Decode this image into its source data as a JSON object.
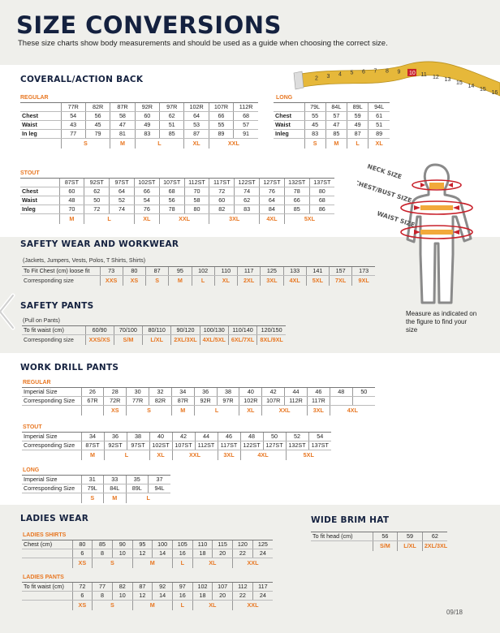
{
  "header": {
    "title": "SIZE CONVERSIONS",
    "subtitle": "These size charts show body measurements and should be used as a guide when choosing the correct size.",
    "tape_numbers": [
      "2",
      "3",
      "4",
      "5",
      "6",
      "7",
      "8",
      "9",
      "10",
      "11",
      "12",
      "13",
      "15",
      "14",
      "15",
      "16"
    ]
  },
  "colors": {
    "navy": "#14213f",
    "orange": "#e87722",
    "band": "#efefeb",
    "arrow": "#c8202a",
    "tape": "#e6b83a"
  },
  "coverall": {
    "title": "COVERALL/ACTION BACK",
    "regular": {
      "label": "REGULAR",
      "header": [
        "",
        "77R",
        "82R",
        "87R",
        "92R",
        "97R",
        "102R",
        "107R",
        "112R"
      ],
      "rows": [
        [
          "Chest",
          "54",
          "56",
          "58",
          "60",
          "62",
          "64",
          "66",
          "68"
        ],
        [
          "Waist",
          "43",
          "45",
          "47",
          "49",
          "51",
          "53",
          "55",
          "57"
        ],
        [
          "In leg",
          "77",
          "79",
          "81",
          "83",
          "85",
          "87",
          "89",
          "91"
        ]
      ],
      "sizes": {
        "label": "",
        "items": [
          {
            "label": "S",
            "span": 2
          },
          {
            "label": "M",
            "span": 1
          },
          {
            "label": "L",
            "span": 2
          },
          {
            "label": "XL",
            "span": 1
          },
          {
            "label": "XXL",
            "span": 2
          }
        ]
      }
    },
    "long": {
      "label": "LONG",
      "header": [
        "",
        "79L",
        "84L",
        "89L",
        "94L"
      ],
      "rows": [
        [
          "Chest",
          "55",
          "57",
          "59",
          "61"
        ],
        [
          "Waist",
          "45",
          "47",
          "49",
          "51"
        ],
        [
          "Inleg",
          "83",
          "85",
          "87",
          "89"
        ]
      ],
      "sizes": {
        "label": "",
        "items": [
          {
            "label": "S",
            "span": 1
          },
          {
            "label": "M",
            "span": 1
          },
          {
            "label": "L",
            "span": 1
          },
          {
            "label": "XL",
            "span": 1
          }
        ]
      }
    },
    "stout": {
      "label": "STOUT",
      "header": [
        "",
        "87ST",
        "92ST",
        "97ST",
        "102ST",
        "107ST",
        "112ST",
        "117ST",
        "122ST",
        "127ST",
        "132ST",
        "137ST"
      ],
      "rows": [
        [
          "Chest",
          "60",
          "62",
          "64",
          "66",
          "68",
          "70",
          "72",
          "74",
          "76",
          "78",
          "80"
        ],
        [
          "Waist",
          "48",
          "50",
          "52",
          "54",
          "56",
          "58",
          "60",
          "62",
          "64",
          "66",
          "68"
        ],
        [
          "Inleg",
          "70",
          "72",
          "74",
          "76",
          "78",
          "80",
          "82",
          "83",
          "84",
          "85",
          "86"
        ]
      ],
      "sizes": {
        "label": "",
        "items": [
          {
            "label": "M",
            "span": 1
          },
          {
            "label": "L",
            "span": 2
          },
          {
            "label": "XL",
            "span": 1
          },
          {
            "label": "XXL",
            "span": 2
          },
          {
            "label": "3XL",
            "span": 2
          },
          {
            "label": "4XL",
            "span": 1
          },
          {
            "label": "5XL",
            "span": 2
          }
        ]
      }
    }
  },
  "figure": {
    "neck_label": "NECK SIZE",
    "chest_label": "CHEST/BUST SIZE",
    "waist_label": "WAIST SIZE",
    "caption": "Measure as indicated on the figure to find your size"
  },
  "safety_wear": {
    "title": "SAFETY WEAR AND WORKWEAR",
    "table": {
      "note": "(Jackets, Jumpers, Vests, Polos, T Shirts, Shirts)",
      "rows": [
        [
          "To Fit Chest (cm) loose fit",
          "73",
          "80",
          "87",
          "95",
          "102",
          "110",
          "117",
          "125",
          "133",
          "141",
          "157",
          "173"
        ]
      ],
      "sizes": {
        "label": "Corresponding size",
        "items": [
          {
            "label": "XXS",
            "span": 1
          },
          {
            "label": "XS",
            "span": 1
          },
          {
            "label": "S",
            "span": 1
          },
          {
            "label": "M",
            "span": 1
          },
          {
            "label": "L",
            "span": 1
          },
          {
            "label": "XL",
            "span": 1
          },
          {
            "label": "2XL",
            "span": 1
          },
          {
            "label": "3XL",
            "span": 1
          },
          {
            "label": "4XL",
            "span": 1
          },
          {
            "label": "5XL",
            "span": 1
          },
          {
            "label": "7XL",
            "span": 1
          },
          {
            "label": "9XL",
            "span": 1
          }
        ]
      }
    }
  },
  "safety_pants": {
    "title": "SAFETY PANTS",
    "table": {
      "note": "(Pull on Pants)",
      "rows": [
        [
          "To fit waist (cm)",
          "60/90",
          "70/100",
          "80/110",
          "90/120",
          "100/130",
          "110/140",
          "120/150"
        ]
      ],
      "sizes": {
        "label": "Corresponding size",
        "items": [
          {
            "label": "XXS/XS",
            "span": 1
          },
          {
            "label": "S/M",
            "span": 1
          },
          {
            "label": "L/XL",
            "span": 1
          },
          {
            "label": "2XL/3XL",
            "span": 1
          },
          {
            "label": "4XL/5XL",
            "span": 1
          },
          {
            "label": "6XL/7XL",
            "span": 1
          },
          {
            "label": "8XL/9XL",
            "span": 1
          }
        ]
      }
    }
  },
  "work_drill": {
    "title": "WORK DRILL PANTS",
    "regular": {
      "label": "REGULAR",
      "rows": [
        [
          "Imperial Size",
          "26",
          "28",
          "30",
          "32",
          "34",
          "36",
          "38",
          "40",
          "42",
          "44",
          "46",
          "48",
          "50"
        ],
        [
          "Corresponding Size",
          "67R",
          "72R",
          "77R",
          "82R",
          "87R",
          "92R",
          "97R",
          "102R",
          "107R",
          "112R",
          "117R",
          "",
          ""
        ]
      ],
      "sizes": {
        "label": "",
        "items": [
          {
            "label": "",
            "span": 1
          },
          {
            "label": "XS",
            "span": 1
          },
          {
            "label": "S",
            "span": 2
          },
          {
            "label": "M",
            "span": 1
          },
          {
            "label": "L",
            "span": 2
          },
          {
            "label": "XL",
            "span": 1
          },
          {
            "label": "XXL",
            "span": 2
          },
          {
            "label": "3XL",
            "span": 1
          },
          {
            "label": "4XL",
            "span": 2
          }
        ]
      }
    },
    "stout": {
      "label": "STOUT",
      "rows": [
        [
          "Imperial Size",
          "34",
          "36",
          "38",
          "40",
          "42",
          "44",
          "46",
          "48",
          "50",
          "52",
          "54"
        ],
        [
          "Corresponding Size",
          "87ST",
          "92ST",
          "97ST",
          "102ST",
          "107ST",
          "112ST",
          "117ST",
          "122ST",
          "127ST",
          "132ST",
          "137ST"
        ]
      ],
      "sizes": {
        "label": "",
        "items": [
          {
            "label": "M",
            "span": 1
          },
          {
            "label": "L",
            "span": 2
          },
          {
            "label": "XL",
            "span": 1
          },
          {
            "label": "XXL",
            "span": 2
          },
          {
            "label": "3XL",
            "span": 1
          },
          {
            "label": "4XL",
            "span": 2
          },
          {
            "label": "5XL",
            "span": 2
          }
        ]
      }
    },
    "long": {
      "label": "LONG",
      "rows": [
        [
          "Imperial Size",
          "31",
          "33",
          "35",
          "37"
        ],
        [
          "Corresponding Size",
          "79L",
          "84L",
          "89L",
          "94L"
        ]
      ],
      "sizes": {
        "label": "",
        "items": [
          {
            "label": "S",
            "span": 1
          },
          {
            "label": "M",
            "span": 1
          },
          {
            "label": "L",
            "span": 2
          }
        ]
      }
    }
  },
  "ladies": {
    "title": "LADIES WEAR",
    "shirts": {
      "label": "LADIES SHIRTS",
      "rows": [
        [
          "Chest (cm)",
          "80",
          "85",
          "90",
          "95",
          "100",
          "105",
          "110",
          "115",
          "120",
          "125"
        ],
        [
          "",
          "6",
          "8",
          "10",
          "12",
          "14",
          "16",
          "18",
          "20",
          "22",
          "24"
        ]
      ],
      "sizes": {
        "label": "",
        "items": [
          {
            "label": "XS",
            "span": 1
          },
          {
            "label": "S",
            "span": 2
          },
          {
            "label": "M",
            "span": 2
          },
          {
            "label": "L",
            "span": 1
          },
          {
            "label": "XL",
            "span": 2
          },
          {
            "label": "XXL",
            "span": 2
          }
        ]
      }
    },
    "pants": {
      "label": "LADIES PANTS",
      "rows": [
        [
          "To fit waist (cm)",
          "72",
          "77",
          "82",
          "87",
          "92",
          "97",
          "102",
          "107",
          "112",
          "117"
        ],
        [
          "",
          "6",
          "8",
          "10",
          "12",
          "14",
          "16",
          "18",
          "20",
          "22",
          "24"
        ]
      ],
      "sizes": {
        "label": "",
        "items": [
          {
            "label": "XS",
            "span": 1
          },
          {
            "label": "S",
            "span": 2
          },
          {
            "label": "M",
            "span": 2
          },
          {
            "label": "L",
            "span": 1
          },
          {
            "label": "XL",
            "span": 2
          },
          {
            "label": "XXL",
            "span": 2
          }
        ]
      }
    }
  },
  "hat": {
    "title": "WIDE BRIM HAT",
    "rows": [
      [
        "To fit head (cm)",
        "56",
        "59",
        "62"
      ]
    ],
    "sizes": {
      "label": "",
      "items": [
        {
          "label": "S/M",
          "span": 1
        },
        {
          "label": "L/XL",
          "span": 1
        },
        {
          "label": "2XL/3XL",
          "span": 1
        }
      ]
    }
  },
  "page_number": "09/18"
}
